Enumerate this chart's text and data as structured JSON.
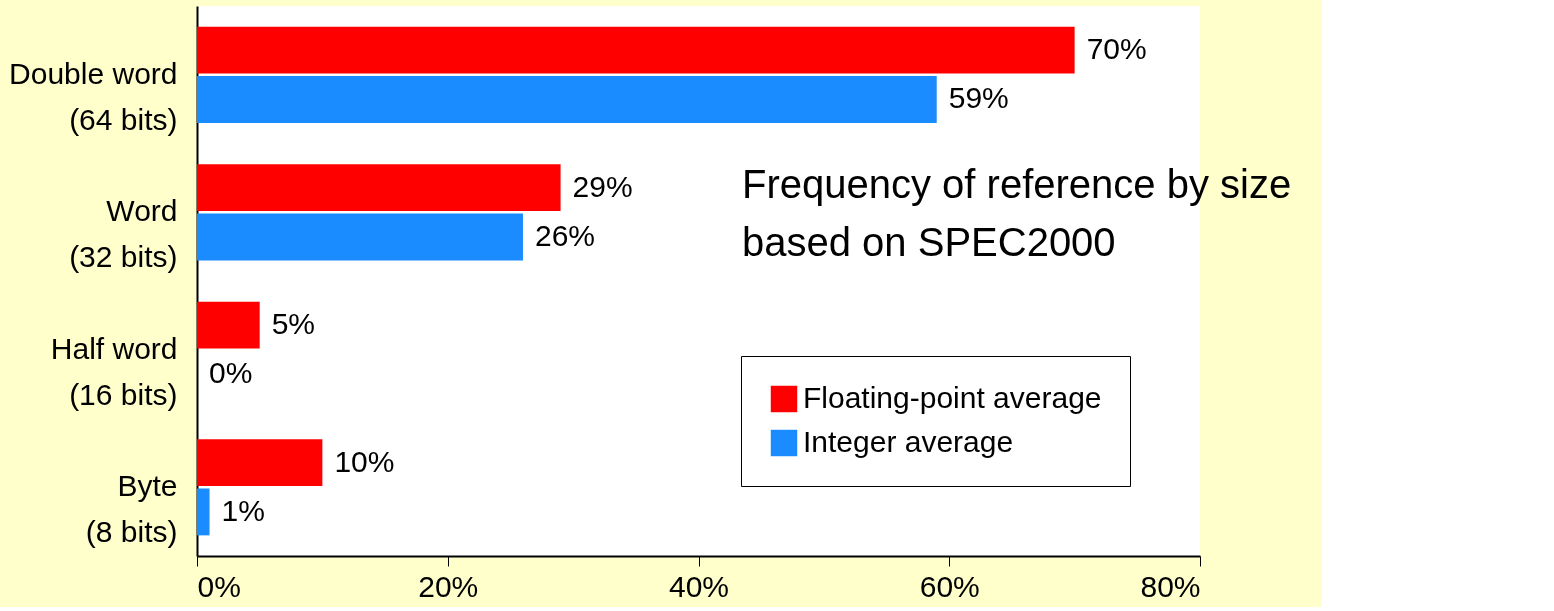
{
  "chart_data": {
    "type": "bar",
    "orientation": "horizontal",
    "categories": [
      "Double word\n(64 bits)",
      "Word\n(32 bits)",
      "Half word\n(16 bits)",
      "Byte\n(8 bits)"
    ],
    "series": [
      {
        "name": "Floating-point average",
        "color": "#ff0000",
        "values": [
          70,
          29,
          5,
          10
        ],
        "value_labels": [
          "70%",
          "29%",
          "5%",
          "10%"
        ]
      },
      {
        "name": "Integer average",
        "color": "#1a8cff",
        "values": [
          59,
          26,
          0,
          1
        ],
        "value_labels": [
          "59%",
          "26%",
          "0%",
          "1%"
        ]
      }
    ],
    "xlim": [
      0,
      80
    ],
    "xticks": [
      {
        "value": 0,
        "label": "0%"
      },
      {
        "value": 20,
        "label": "20%"
      },
      {
        "value": 40,
        "label": "40%"
      },
      {
        "value": 60,
        "label": "60%"
      },
      {
        "value": 80,
        "label": "80%"
      }
    ],
    "legend": "bottom right",
    "grid": false,
    "annotations": [
      "Frequency of reference by size\nbased on SPEC2000"
    ]
  }
}
